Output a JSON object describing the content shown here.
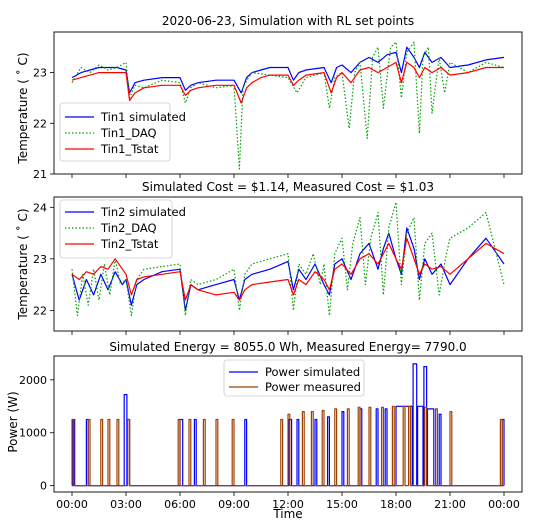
{
  "chart_data": [
    {
      "type": "line",
      "title": "2020-06-23, Simulation with RL set points",
      "xlabel": "",
      "ylabel": "Temperature ($^\\circ$C)",
      "ylim": [
        21,
        23.8
      ],
      "yticks": [
        21,
        22,
        23
      ],
      "xlim": [
        -1,
        25
      ],
      "legend": "lower-left",
      "series": [
        {
          "name": "Tin1 simulated",
          "color": "#0000ff",
          "style": "solid",
          "x": [
            0,
            0.5,
            1,
            1.5,
            2,
            2.5,
            3,
            3.2,
            3.5,
            4,
            5,
            6,
            6.3,
            6.6,
            7,
            8,
            9,
            9.4,
            9.7,
            10,
            10.5,
            11,
            12,
            12.3,
            12.6,
            13,
            14,
            14.4,
            14.7,
            15,
            15.5,
            16,
            16.5,
            17,
            17.5,
            18,
            18.3,
            18.6,
            19,
            19.3,
            19.6,
            20,
            20.5,
            21,
            22,
            23,
            24
          ],
          "y": [
            22.9,
            23.0,
            23.05,
            23.1,
            23.1,
            23.1,
            23.05,
            22.6,
            22.8,
            22.85,
            22.9,
            22.9,
            22.65,
            22.75,
            22.8,
            22.85,
            22.85,
            22.6,
            22.9,
            23.0,
            23.05,
            23.1,
            23.1,
            22.85,
            23.0,
            23.05,
            23.1,
            22.8,
            23.1,
            23.15,
            23.0,
            23.2,
            23.3,
            23.2,
            23.35,
            23.4,
            23.0,
            23.5,
            23.3,
            23.1,
            23.4,
            23.2,
            23.3,
            23.1,
            23.15,
            23.25,
            23.3
          ]
        },
        {
          "name": "Tin1_DAQ",
          "color": "#00a000",
          "style": "dotted",
          "x": [
            0,
            0.5,
            1,
            1.5,
            2,
            2.5,
            3,
            3.2,
            3.5,
            4,
            5,
            6,
            6.3,
            6.6,
            7,
            8,
            9,
            9.3,
            9.5,
            9.8,
            10,
            11,
            12,
            12.5,
            13,
            14,
            14.3,
            14.6,
            15,
            15.4,
            15.7,
            16,
            16.4,
            16.7,
            17,
            17.3,
            17.7,
            18,
            18.3,
            18.6,
            19,
            19.3,
            19.5,
            19.8,
            20,
            20.4,
            20.7,
            21,
            22,
            23,
            24
          ],
          "y": [
            22.8,
            23.1,
            23.0,
            23.15,
            23.05,
            23.1,
            23.2,
            22.5,
            22.75,
            22.7,
            22.85,
            22.8,
            22.4,
            22.7,
            22.8,
            22.7,
            22.75,
            21.1,
            22.7,
            22.9,
            23.0,
            22.95,
            22.9,
            22.6,
            22.9,
            23.0,
            22.3,
            22.9,
            23.0,
            21.9,
            23.0,
            23.2,
            21.7,
            23.3,
            23.5,
            22.3,
            23.5,
            23.6,
            22.5,
            23.4,
            23.6,
            21.8,
            23.3,
            23.5,
            22.2,
            23.3,
            22.6,
            23.2,
            23.0,
            23.2,
            23.1
          ]
        },
        {
          "name": "Tin1_Tstat",
          "color": "#ff0000",
          "style": "solid",
          "x": [
            0,
            0.5,
            1,
            1.5,
            2,
            2.5,
            3,
            3.2,
            3.5,
            4,
            5,
            6,
            6.3,
            6.6,
            7,
            8,
            9,
            9.4,
            9.7,
            10,
            10.5,
            11,
            12,
            12.3,
            12.6,
            13,
            14,
            14.4,
            14.7,
            15,
            15.5,
            16,
            16.5,
            17,
            17.5,
            18,
            18.3,
            18.6,
            19,
            19.3,
            19.6,
            20,
            20.5,
            21,
            22,
            23,
            24
          ],
          "y": [
            22.85,
            22.9,
            22.95,
            23.0,
            23.0,
            23.0,
            23.0,
            22.45,
            22.6,
            22.7,
            22.75,
            22.75,
            22.55,
            22.65,
            22.7,
            22.75,
            22.75,
            22.4,
            22.7,
            22.8,
            22.9,
            22.95,
            22.95,
            22.75,
            22.85,
            22.95,
            23.0,
            22.6,
            22.9,
            23.0,
            22.8,
            23.05,
            23.1,
            23.0,
            23.1,
            23.2,
            22.8,
            23.2,
            23.1,
            22.9,
            23.1,
            23.0,
            23.1,
            22.95,
            23.0,
            23.1,
            23.1
          ]
        }
      ]
    },
    {
      "type": "line",
      "title": "Simulated Cost = $1.14, Measured Cost = $1.03",
      "xlabel": "",
      "ylabel": "Temperature ($^\\circ$C)",
      "ylim": [
        21.6,
        24.2
      ],
      "yticks": [
        22,
        23,
        24
      ],
      "xlim": [
        -1,
        25
      ],
      "legend": "upper-left",
      "series": [
        {
          "name": "Tin2 simulated",
          "color": "#0000ff",
          "style": "solid",
          "x": [
            0,
            0.4,
            0.8,
            1.2,
            1.6,
            2,
            2.4,
            2.8,
            3,
            3.3,
            3.6,
            4,
            5,
            6,
            6.3,
            6.6,
            7,
            8,
            9,
            9.3,
            9.6,
            10,
            11,
            12,
            12.3,
            12.6,
            13,
            13.5,
            14,
            14.3,
            14.6,
            15,
            15.5,
            16,
            16.5,
            17,
            17.3,
            17.6,
            18,
            18.3,
            18.6,
            19,
            19.3,
            19.6,
            20,
            20.5,
            21,
            22,
            23,
            24
          ],
          "y": [
            22.7,
            22.2,
            22.6,
            22.3,
            22.7,
            22.4,
            22.75,
            22.5,
            22.6,
            22.1,
            22.5,
            22.6,
            22.75,
            22.8,
            22.0,
            22.5,
            22.4,
            22.5,
            22.6,
            22.2,
            22.6,
            22.7,
            22.8,
            22.95,
            22.4,
            22.8,
            22.6,
            22.9,
            22.5,
            22.3,
            22.9,
            23.0,
            22.6,
            23.1,
            23.3,
            22.8,
            23.2,
            23.5,
            23.0,
            22.7,
            23.6,
            23.2,
            22.6,
            23.0,
            22.7,
            22.9,
            22.5,
            23.0,
            23.4,
            22.9
          ]
        },
        {
          "name": "Tin2_DAQ",
          "color": "#00a000",
          "style": "dotted",
          "x": [
            0,
            0.3,
            0.6,
            0.9,
            1.2,
            1.5,
            1.8,
            2.1,
            2.4,
            2.7,
            3,
            3.3,
            3.6,
            4,
            5,
            6,
            6.3,
            6.6,
            7,
            8,
            9,
            9.3,
            9.6,
            10,
            11,
            12,
            12.3,
            12.6,
            13,
            13.4,
            13.8,
            14,
            14.3,
            14.6,
            15,
            15.3,
            15.6,
            16,
            16.3,
            16.6,
            17,
            17.3,
            17.6,
            18,
            18.3,
            18.6,
            19,
            19.3,
            19.6,
            20,
            20.4,
            20.8,
            21,
            22,
            23,
            24
          ],
          "y": [
            22.8,
            21.9,
            22.7,
            22.1,
            22.8,
            22.2,
            22.9,
            22.3,
            23.0,
            22.5,
            22.6,
            21.9,
            22.6,
            22.8,
            22.85,
            22.9,
            21.9,
            22.6,
            22.5,
            22.6,
            22.8,
            22.0,
            22.7,
            22.9,
            23.0,
            23.1,
            22.0,
            22.9,
            22.7,
            23.1,
            22.5,
            22.9,
            21.9,
            23.1,
            23.4,
            22.4,
            23.3,
            23.8,
            22.5,
            23.4,
            23.9,
            22.3,
            23.6,
            24.1,
            22.5,
            23.5,
            23.8,
            22.2,
            23.3,
            23.5,
            22.3,
            23.1,
            23.4,
            23.6,
            23.9,
            22.5
          ]
        },
        {
          "name": "Tin2_Tstat",
          "color": "#ff0000",
          "style": "solid",
          "x": [
            0,
            0.4,
            0.8,
            1.2,
            1.6,
            2,
            2.4,
            2.8,
            3,
            3.3,
            3.6,
            4,
            5,
            6,
            6.3,
            6.6,
            7,
            8,
            9,
            9.3,
            9.6,
            10,
            11,
            12,
            12.3,
            12.6,
            13,
            13.5,
            14,
            14.3,
            14.6,
            15,
            15.5,
            16,
            16.5,
            17,
            17.3,
            17.6,
            18,
            18.3,
            18.6,
            19,
            19.3,
            19.6,
            20,
            20.5,
            21,
            22,
            23,
            24
          ],
          "y": [
            22.7,
            22.6,
            22.75,
            22.7,
            22.85,
            22.8,
            23.0,
            22.8,
            22.7,
            22.3,
            22.6,
            22.65,
            22.7,
            22.75,
            22.2,
            22.5,
            22.4,
            22.3,
            22.35,
            22.2,
            22.4,
            22.5,
            22.55,
            22.6,
            22.3,
            22.6,
            22.5,
            22.75,
            22.6,
            22.4,
            22.8,
            22.9,
            22.7,
            23.0,
            23.1,
            22.9,
            23.1,
            23.3,
            23.0,
            22.8,
            23.4,
            23.0,
            22.7,
            22.9,
            22.8,
            22.85,
            22.7,
            23.0,
            23.3,
            23.1
          ]
        }
      ]
    },
    {
      "type": "line",
      "title": "Simulated Energy = 8055.0 Wh, Measured Energy= 7790.0",
      "xlabel": "Time",
      "ylabel": "Power (W)",
      "ylim": [
        -120,
        2450
      ],
      "yticks": [
        0,
        1000,
        2000
      ],
      "xlim": [
        -1,
        25
      ],
      "xticks": [
        0,
        3,
        6,
        9,
        12,
        15,
        18,
        21,
        24
      ],
      "xticklabels": [
        "00:00",
        "03:00",
        "06:00",
        "09:00",
        "12:00",
        "15:00",
        "18:00",
        "21:00",
        "00:00"
      ],
      "legend": "upper-center",
      "series": [
        {
          "name": "Power simulated",
          "color": "#0000ff",
          "style": "solid",
          "on_intervals": [
            [
              0.05,
              0.15,
              1250
            ],
            [
              0.8,
              0.9,
              1250
            ],
            [
              2.9,
              3.05,
              1720
            ],
            [
              3.05,
              3.2,
              1250
            ],
            [
              6.0,
              6.15,
              1250
            ],
            [
              6.8,
              6.9,
              1250
            ],
            [
              9.6,
              9.7,
              1250
            ],
            [
              12.05,
              12.2,
              1250
            ],
            [
              12.5,
              12.6,
              1250
            ],
            [
              13.5,
              13.6,
              1250
            ],
            [
              14.2,
              14.3,
              1300
            ],
            [
              15.0,
              15.1,
              1400
            ],
            [
              16.0,
              16.1,
              1450
            ],
            [
              16.9,
              17.0,
              1450
            ],
            [
              17.4,
              17.5,
              1450
            ],
            [
              18.0,
              18.9,
              1500
            ],
            [
              18.95,
              19.15,
              2300
            ],
            [
              19.2,
              19.5,
              1500
            ],
            [
              19.55,
              19.7,
              2250
            ],
            [
              19.75,
              20.1,
              1450
            ],
            [
              20.4,
              20.5,
              1350
            ],
            [
              23.9,
              24.0,
              1250
            ]
          ]
        },
        {
          "name": "Power measured",
          "color": "#a04000",
          "style": "solid",
          "on_intervals": [
            [
              0.0,
              0.1,
              1250
            ],
            [
              0.9,
              1.0,
              1250
            ],
            [
              1.6,
              1.7,
              1250
            ],
            [
              2.0,
              2.1,
              1250
            ],
            [
              2.5,
              2.6,
              1250
            ],
            [
              3.1,
              3.2,
              1250
            ],
            [
              5.9,
              6.0,
              1250
            ],
            [
              6.5,
              6.6,
              1250
            ],
            [
              7.3,
              7.4,
              1250
            ],
            [
              8.0,
              8.1,
              1250
            ],
            [
              8.9,
              9.0,
              1250
            ],
            [
              11.6,
              11.7,
              1250
            ],
            [
              12.0,
              12.1,
              1350
            ],
            [
              12.8,
              12.9,
              1400
            ],
            [
              13.3,
              13.4,
              1400
            ],
            [
              13.9,
              14.0,
              1420
            ],
            [
              14.6,
              14.7,
              1450
            ],
            [
              15.3,
              15.4,
              1450
            ],
            [
              15.9,
              16.0,
              1480
            ],
            [
              16.5,
              16.6,
              1480
            ],
            [
              17.2,
              17.3,
              1480
            ],
            [
              17.8,
              17.9,
              1500
            ],
            [
              18.4,
              18.5,
              1500
            ],
            [
              18.7,
              18.8,
              1500
            ],
            [
              19.6,
              19.7,
              1480
            ],
            [
              20.2,
              20.3,
              1450
            ],
            [
              21.0,
              21.1,
              1400
            ],
            [
              23.8,
              23.9,
              1250
            ]
          ]
        }
      ]
    }
  ]
}
